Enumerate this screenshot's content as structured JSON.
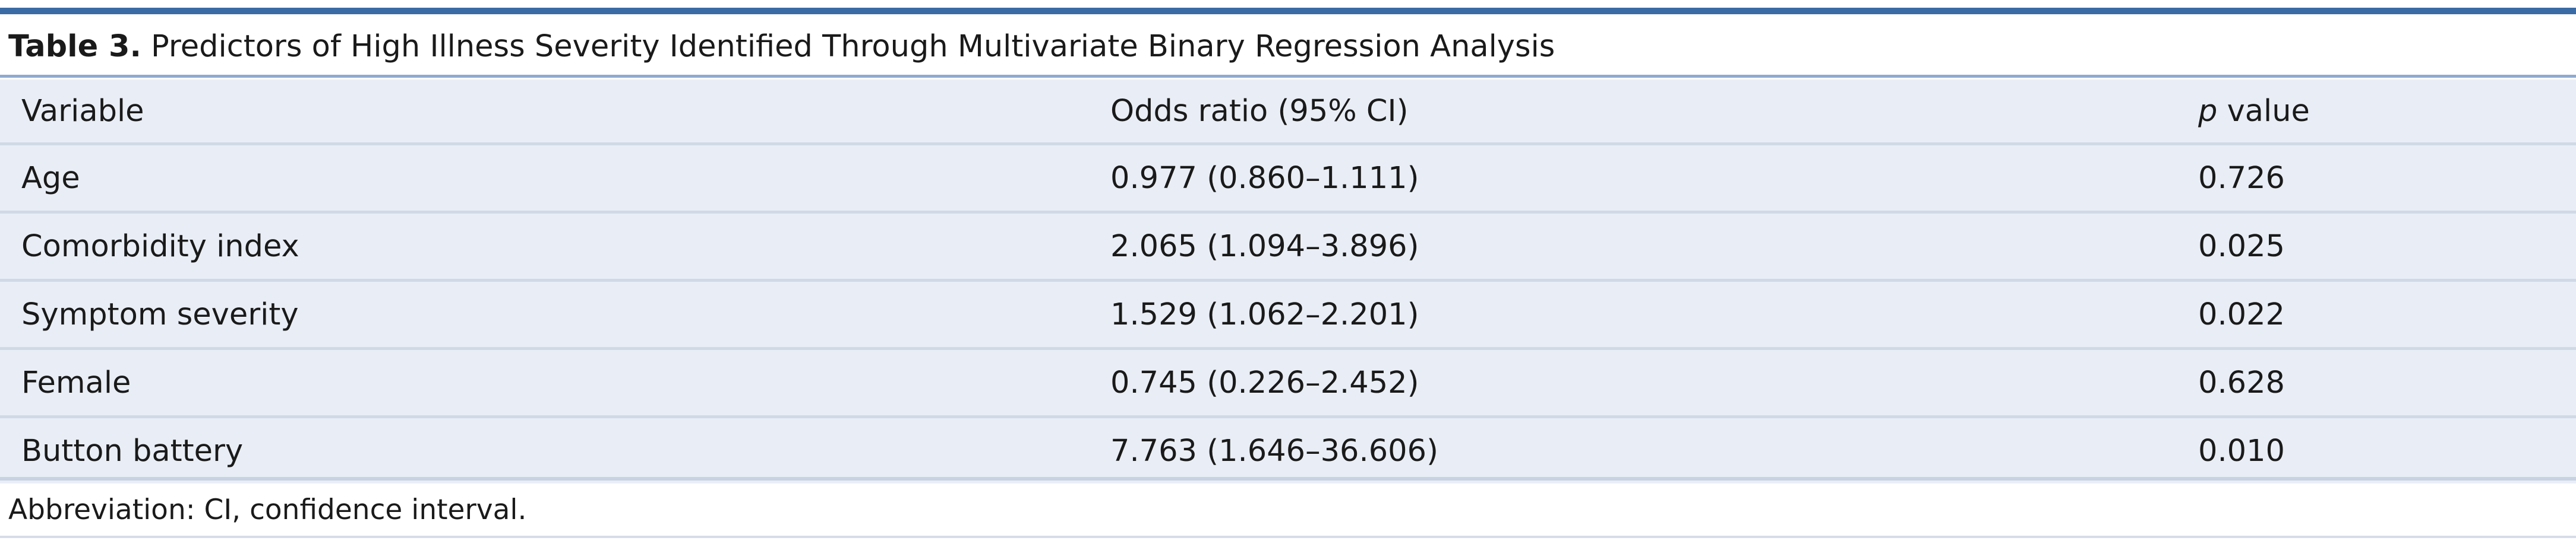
{
  "caption": {
    "label": "Table 3.",
    "title": "Predictors of High Illness Severity Identified Through Multivariate Binary Regression Analysis"
  },
  "table": {
    "headers": {
      "variable": "Variable",
      "odds_ratio": "Odds ratio (95% CI)",
      "p_value_italic": "p",
      "p_value_rest": " value"
    },
    "rows": [
      {
        "variable": "Age",
        "odds_ratio": "0.977 (0.860–1.111)",
        "p_value": "0.726"
      },
      {
        "variable": "Comorbidity index",
        "odds_ratio": "2.065 (1.094–3.896)",
        "p_value": "0.025"
      },
      {
        "variable": "Symptom severity",
        "odds_ratio": "1.529 (1.062–2.201)",
        "p_value": "0.022"
      },
      {
        "variable": "Female",
        "odds_ratio": "0.745 (0.226–2.452)",
        "p_value": "0.628"
      },
      {
        "variable": "Button battery",
        "odds_ratio": "7.763 (1.646–36.606)",
        "p_value": "0.010"
      }
    ]
  },
  "footnote": "Abbreviation: CI, confidence interval.",
  "colors": {
    "top_rule": "#3b6ba5",
    "caption_rule": "#8eaad2",
    "row_background": "#e9eef6",
    "row_divider": "#d0d9e6"
  }
}
